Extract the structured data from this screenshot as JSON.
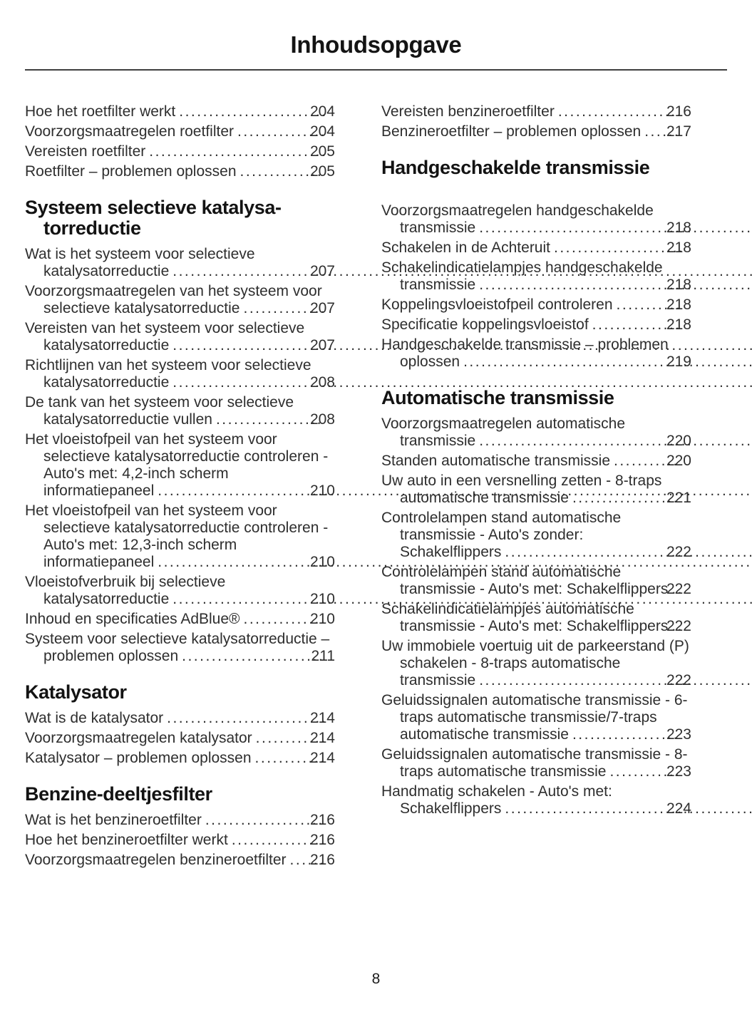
{
  "title": "Inhoudsopgave",
  "page_number": "8",
  "colors": {
    "text": "#2e2e2e",
    "heading": "#131313",
    "rule": "#3f3f3f",
    "background": "#ffffff"
  },
  "columns": [
    {
      "blocks": [
        {
          "type": "entries",
          "items": [
            {
              "t": "Hoe het roetfilter werkt",
              "p": "204"
            },
            {
              "t": "Voorzorgsmaatregelen roetfilter",
              "p": "204"
            },
            {
              "t": "Vereisten roetfilter",
              "p": "205"
            },
            {
              "t": "Roetfilter – problemen oplossen",
              "p": "205"
            }
          ]
        },
        {
          "type": "heading",
          "lines": [
            "Systeem selectieve katalysa-",
            "torreductie"
          ]
        },
        {
          "type": "entries",
          "items": [
            {
              "t": "Wat is het systeem voor selectieve katalysatorreductie",
              "p": "207"
            },
            {
              "t": "Voorzorgsmaatregelen van het systeem voor selectieve katalysatorreductie",
              "p": "207"
            },
            {
              "t": "Vereisten van het systeem voor selectieve katalysatorreductie",
              "p": "207"
            },
            {
              "t": "Richtlijnen van het systeem voor selectieve katalysatorreductie",
              "p": "208"
            },
            {
              "t": "De tank van het systeem voor selectieve katalysatorreductie vullen",
              "p": "208"
            },
            {
              "t": "Het vloeistofpeil van het systeem voor selectieve katalysatorreductie controleren - Auto's met: 4,2-inch scherm informatiepaneel",
              "p": "210"
            },
            {
              "t": "Het vloeistofpeil van het systeem voor selectieve katalysatorreductie controleren - Auto's met: 12,3-inch scherm informatiepaneel",
              "p": "210"
            },
            {
              "t": "Vloeistofverbruik bij selectieve katalysatorreductie",
              "p": "210"
            },
            {
              "t": "Inhoud en specificaties AdBlue®",
              "p": "210"
            },
            {
              "t": "Systeem voor selectieve katalysatorreductie – problemen oplossen",
              "p": "211"
            }
          ]
        },
        {
          "type": "heading",
          "lines": [
            "Katalysator"
          ]
        },
        {
          "type": "entries",
          "items": [
            {
              "t": "Wat is de katalysator",
              "p": "214"
            },
            {
              "t": "Voorzorgsmaatregelen katalysator",
              "p": "214"
            },
            {
              "t": "Katalysator – problemen oplossen",
              "p": "214"
            }
          ]
        },
        {
          "type": "heading",
          "lines": [
            "Benzine-deeltjesfilter"
          ]
        },
        {
          "type": "entries",
          "items": [
            {
              "t": "Wat is het benzineroetfilter",
              "p": "216"
            },
            {
              "t": "Hoe het benzineroetfilter werkt",
              "p": "216"
            },
            {
              "t": "Voorzorgsmaatregelen benzineroetfilter",
              "p": "216"
            }
          ]
        }
      ]
    },
    {
      "blocks": [
        {
          "type": "entries",
          "items": [
            {
              "t": "Vereisten benzineroetfilter",
              "p": "216"
            },
            {
              "t": "Benzineroetfilter – problemen oplossen",
              "p": "217"
            }
          ]
        },
        {
          "type": "heading",
          "lines": [
            "Handgeschakelde transmissie"
          ],
          "margin_bottom": 34
        },
        {
          "type": "entries",
          "items": [
            {
              "t": "Voorzorgsmaatregelen handgeschakelde transmissie",
              "p": "218"
            },
            {
              "t": "Schakelen in de Achteruit",
              "p": "218"
            },
            {
              "t": "Schakelindicatielampjes handgeschakelde transmissie",
              "p": "218"
            },
            {
              "t": "Koppelingsvloeistofpeil controleren",
              "p": "218"
            },
            {
              "t": "Specificatie koppelingsvloeistof",
              "p": "218"
            },
            {
              "t": "Handgeschakelde transmissie – problemen oplossen",
              "p": "219"
            }
          ]
        },
        {
          "type": "heading",
          "lines": [
            "Automatische transmissie"
          ]
        },
        {
          "type": "entries",
          "items": [
            {
              "t": "Voorzorgsmaatregelen automatische transmissie",
              "p": "220"
            },
            {
              "t": "Standen automatische transmissie",
              "p": "220"
            },
            {
              "t": "Uw auto in een versnelling zetten - 8-traps automatische transmissie",
              "p": "221"
            },
            {
              "t": "Controlelampen stand automatische transmissie - Auto's zonder: Schakelflippers",
              "p": "222"
            },
            {
              "t": "Controlelampen stand automatische transmissie - Auto's met: Schakelflippers",
              "p": "222"
            },
            {
              "t": "Schakelindicatielampjes automatische transmissie - Auto's met: Schakelflippers",
              "p": "222"
            },
            {
              "t": "Uw immobiele voertuig uit de parkeerstand (P) schakelen - 8-traps automatische transmissie",
              "p": "222"
            },
            {
              "t": "Geluidssignalen automatische transmissie - 6-traps automatische transmissie/7-traps automatische transmissie",
              "p": "223"
            },
            {
              "t": "Geluidssignalen automatische transmissie - 8-traps automatische transmissie",
              "p": "223"
            },
            {
              "t": "Handmatig schakelen - Auto's met: Schakelflippers",
              "p": "224"
            }
          ]
        }
      ]
    }
  ]
}
